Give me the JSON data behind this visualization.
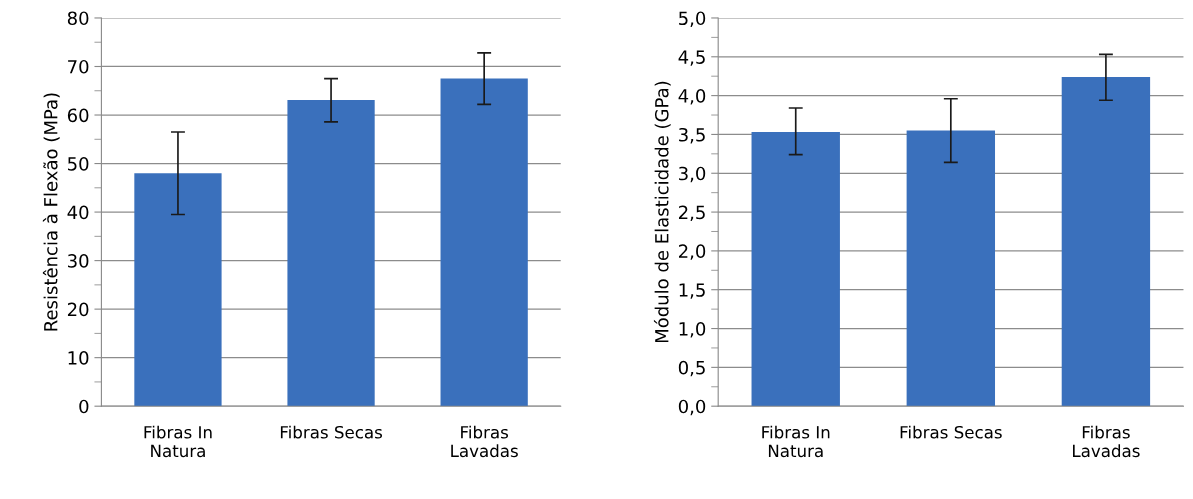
{
  "chart_data": [
    {
      "type": "bar",
      "ylabel": "Resistência à Flexão (MPa)",
      "categories": [
        "Fibras In\nNatura",
        "Fibras Secas",
        "Fibras\nLavadas"
      ],
      "values": [
        48.0,
        63.1,
        67.5
      ],
      "errors": [
        [
          39.5,
          56.5
        ],
        [
          58.6,
          67.5
        ],
        [
          62.2,
          72.8
        ]
      ],
      "color": "#3a70bc",
      "ylim": [
        0,
        80
      ],
      "yticks": [
        0,
        {
          "value": 5,
          "label": null
        },
        10,
        {
          "value": 15,
          "label": null
        },
        20,
        {
          "value": 25,
          "label": null
        },
        30,
        {
          "value": 35,
          "label": null
        },
        40,
        {
          "value": 45,
          "label": null
        },
        50,
        {
          "value": 55,
          "label": null
        },
        60,
        {
          "value": 65,
          "label": null
        },
        70,
        {
          "value": 75,
          "label": null
        },
        80
      ],
      "grid": "y",
      "legend": false
    },
    {
      "type": "bar",
      "ylabel": "Módulo de Elasticidade (GPa)",
      "categories": [
        "Fibras In\nNatura",
        "Fibras Secas",
        "Fibras\nLavadas"
      ],
      "values": [
        3.53,
        3.55,
        4.24
      ],
      "errors": [
        [
          3.24,
          3.84
        ],
        [
          3.14,
          3.96
        ],
        [
          3.94,
          4.53
        ]
      ],
      "color": "#3a70bc",
      "ylim": [
        0,
        5
      ],
      "yticks": [
        {
          "value": 0,
          "label": "0,0"
        },
        {
          "value": 0.25,
          "label": null
        },
        {
          "value": 0.5,
          "label": "0,5"
        },
        {
          "value": 0.75,
          "label": null
        },
        {
          "value": 1,
          "label": "1,0"
        },
        {
          "value": 1.25,
          "label": null
        },
        {
          "value": 1.5,
          "label": "1,5"
        },
        {
          "value": 1.75,
          "label": null
        },
        {
          "value": 2,
          "label": "2,0"
        },
        {
          "value": 2.25,
          "label": null
        },
        {
          "value": 2.5,
          "label": "2,5"
        },
        {
          "value": 2.75,
          "label": null
        },
        {
          "value": 3,
          "label": "3,0"
        },
        {
          "value": 3.25,
          "label": null
        },
        {
          "value": 3.5,
          "label": "3,5"
        },
        {
          "value": 3.75,
          "label": null
        },
        {
          "value": 4,
          "label": "4,0"
        },
        {
          "value": 4.25,
          "label": null
        },
        {
          "value": 4.5,
          "label": "4,5"
        },
        {
          "value": 4.75,
          "label": null
        },
        {
          "value": 5,
          "label": "5,0"
        }
      ],
      "grid": "y",
      "legend": false
    }
  ]
}
